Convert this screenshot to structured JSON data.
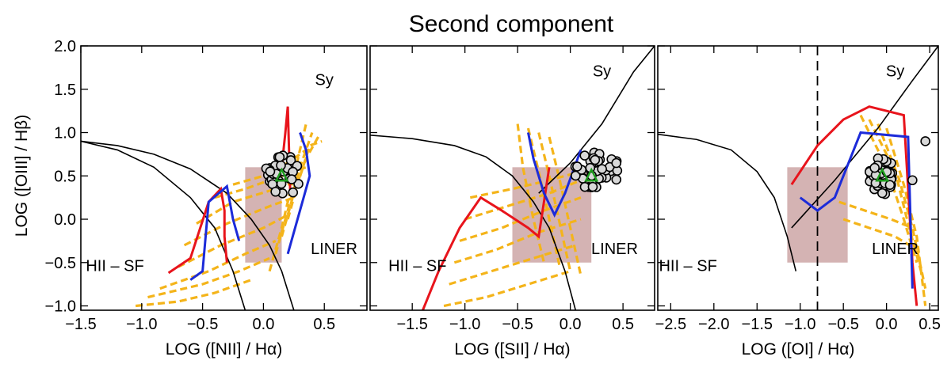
{
  "chart_data": [
    {
      "type": "scatter",
      "title": "Second component",
      "ylabel": "LOG ([OIII] / Hβ)",
      "xlabel": "LOG ([NII] / Hα)",
      "xlim": [
        -1.5,
        0.85
      ],
      "ylim": [
        -1.05,
        2.0
      ],
      "xticks": [
        -1.5,
        -1.0,
        -0.5,
        0.0,
        0.5
      ],
      "yticks": [
        -1.0,
        -0.5,
        0.0,
        0.5,
        1.0,
        1.5,
        2.0
      ],
      "region_labels": [
        {
          "text": "Sy",
          "x": 0.5,
          "y": 1.55
        },
        {
          "text": "HII – SF",
          "x": -1.22,
          "y": -0.6
        },
        {
          "text": "LINER",
          "x": 0.58,
          "y": -0.4
        }
      ],
      "shaded_box": {
        "x": [
          -0.15,
          0.15
        ],
        "y": [
          -0.5,
          0.6
        ],
        "color": "#d4b3b3"
      },
      "curves": [
        {
          "x": [
            -1.5,
            -1.2,
            -0.9,
            -0.6,
            -0.4,
            -0.25,
            -0.15
          ],
          "y": [
            0.9,
            0.8,
            0.6,
            0.25,
            -0.1,
            -0.6,
            -1.05
          ]
        },
        {
          "x": [
            -1.5,
            -1.2,
            -0.9,
            -0.6,
            -0.3,
            -0.1,
            0.05,
            0.15,
            0.25
          ],
          "y": [
            0.9,
            0.85,
            0.75,
            0.58,
            0.3,
            0.0,
            -0.3,
            -0.6,
            -1.05
          ]
        }
      ],
      "series": [
        {
          "color": "#e8141c",
          "x": [
            -0.78,
            -0.6,
            -0.45,
            -0.35,
            -0.32,
            -0.32,
            -0.3
          ],
          "y": [
            -0.62,
            -0.45,
            0.2,
            0.35,
            0.1,
            -0.2,
            -0.5
          ]
        },
        {
          "color": "#1c2bd9",
          "x": [
            -0.6,
            -0.5,
            -0.45,
            -0.3,
            -0.25,
            -0.2
          ],
          "y": [
            -0.7,
            -0.6,
            0.2,
            0.38,
            0.0,
            -0.25
          ]
        },
        {
          "color": "#e8141c",
          "x": [
            0.15,
            0.18,
            0.2,
            0.22
          ],
          "y": [
            0.6,
            1.0,
            1.3,
            0.3
          ]
        },
        {
          "color": "#1c2bd9",
          "x": [
            0.3,
            0.35,
            0.38,
            0.3,
            0.2
          ],
          "y": [
            1.0,
            0.8,
            0.5,
            0.1,
            -0.4
          ]
        }
      ],
      "dashed_series_color": "#f4b41a",
      "dashed_lines": [
        {
          "x": [
            -0.95,
            -0.5,
            -0.2,
            0.05
          ],
          "y": [
            -0.9,
            -0.75,
            -0.6,
            -0.45
          ]
        },
        {
          "x": [
            -0.85,
            -0.45,
            -0.15,
            0.1
          ],
          "y": [
            -0.8,
            -0.6,
            -0.4,
            -0.25
          ]
        },
        {
          "x": [
            -0.7,
            -0.35,
            0.0,
            0.2
          ],
          "y": [
            -0.55,
            -0.3,
            -0.1,
            0.05
          ]
        },
        {
          "x": [
            -0.65,
            -0.3,
            0.05,
            0.25
          ],
          "y": [
            -0.3,
            -0.05,
            0.15,
            0.25
          ]
        },
        {
          "x": [
            -0.55,
            -0.25,
            0.1,
            0.3
          ],
          "y": [
            -0.05,
            0.2,
            0.35,
            0.45
          ]
        },
        {
          "x": [
            -0.4,
            -0.15,
            0.15,
            0.35
          ],
          "y": [
            0.25,
            0.35,
            0.5,
            0.6
          ]
        },
        {
          "x": [
            -0.25,
            0.0,
            0.2,
            0.35
          ],
          "y": [
            0.4,
            0.5,
            0.65,
            0.8
          ]
        },
        {
          "x": [
            -1.05,
            -0.7,
            -0.4,
            -0.1
          ],
          "y": [
            -1.0,
            -0.95,
            -0.85,
            -0.7
          ]
        },
        {
          "x": [
            0.05,
            0.15,
            0.25,
            0.35
          ],
          "y": [
            -0.6,
            -0.1,
            0.5,
            1.1
          ]
        },
        {
          "x": [
            0.1,
            0.2,
            0.3,
            0.4
          ],
          "y": [
            -0.4,
            0.1,
            0.6,
            1.0
          ]
        },
        {
          "x": [
            0.15,
            0.25,
            0.35,
            0.45
          ],
          "y": [
            -0.2,
            0.3,
            0.7,
            0.95
          ]
        },
        {
          "x": [
            0.2,
            0.28,
            0.38,
            0.48
          ],
          "y": [
            0.0,
            0.4,
            0.85,
            0.9
          ]
        }
      ],
      "scatter": {
        "center": [
          0.15,
          0.5
        ],
        "spread": [
          0.3,
          0.5
        ]
      },
      "triangle": {
        "x": 0.15,
        "y": 0.5,
        "color": "#1e9e1e"
      }
    },
    {
      "type": "scatter",
      "xlabel": "LOG ([SII] / Hα)",
      "xlim": [
        -1.9,
        0.8
      ],
      "ylim": [
        -1.05,
        2.0
      ],
      "xticks": [
        -1.5,
        -1.0,
        -0.5,
        0.0,
        0.5
      ],
      "region_labels": [
        {
          "text": "Sy",
          "x": 0.3,
          "y": 1.65
        },
        {
          "text": "HII – SF",
          "x": -1.45,
          "y": -0.6
        },
        {
          "text": "LINER",
          "x": 0.42,
          "y": -0.4
        }
      ],
      "shaded_box": {
        "x": [
          -0.55,
          0.2
        ],
        "y": [
          -0.5,
          0.6
        ],
        "color": "#d4b3b3"
      },
      "curves": [
        {
          "x": [
            -1.9,
            -1.5,
            -1.1,
            -0.8,
            -0.55,
            -0.35,
            -0.2,
            -0.05,
            0.05
          ],
          "y": [
            0.97,
            0.93,
            0.85,
            0.72,
            0.5,
            0.2,
            -0.1,
            -0.6,
            -1.05
          ]
        },
        {
          "x": [
            -0.3,
            0.0,
            0.3,
            0.6,
            0.8
          ],
          "y": [
            0.3,
            0.65,
            1.1,
            1.7,
            2.0
          ]
        }
      ],
      "series": [
        {
          "color": "#e8141c",
          "x": [
            -1.4,
            -1.25,
            -1.05,
            -0.85,
            -0.65,
            -0.4,
            -0.3,
            -0.2
          ],
          "y": [
            -1.05,
            -0.6,
            -0.1,
            0.25,
            0.1,
            -0.1,
            -0.2,
            0.6
          ]
        },
        {
          "color": "#1c2bd9",
          "x": [
            -0.4,
            -0.35,
            -0.25,
            -0.15,
            -0.05,
            0.1
          ],
          "y": [
            1.0,
            0.7,
            0.3,
            0.05,
            0.3,
            0.8
          ]
        }
      ],
      "dashed_series_color": "#f4b41a",
      "dashed_lines": [
        {
          "x": [
            -1.2,
            -0.8,
            -0.4,
            0.0
          ],
          "y": [
            -1.0,
            -0.9,
            -0.75,
            -0.6
          ]
        },
        {
          "x": [
            -1.15,
            -0.75,
            -0.35,
            0.05
          ],
          "y": [
            -0.75,
            -0.6,
            -0.45,
            -0.3
          ]
        },
        {
          "x": [
            -1.1,
            -0.7,
            -0.3,
            0.1
          ],
          "y": [
            -0.5,
            -0.35,
            -0.15,
            0.0
          ]
        },
        {
          "x": [
            -1.05,
            -0.65,
            -0.25,
            0.1
          ],
          "y": [
            -0.25,
            -0.1,
            0.1,
            0.25
          ]
        },
        {
          "x": [
            -1.0,
            -0.6,
            -0.2,
            0.1
          ],
          "y": [
            0.0,
            0.15,
            0.3,
            0.45
          ]
        },
        {
          "x": [
            -0.95,
            -0.55,
            -0.2,
            0.1
          ],
          "y": [
            0.25,
            0.35,
            0.45,
            0.55
          ]
        },
        {
          "x": [
            -0.5,
            -0.45,
            -0.35,
            -0.25
          ],
          "y": [
            1.1,
            0.6,
            0.0,
            -0.5
          ]
        },
        {
          "x": [
            -0.4,
            -0.3,
            -0.2,
            -0.1
          ],
          "y": [
            1.05,
            0.55,
            0.0,
            -0.55
          ]
        },
        {
          "x": [
            -0.3,
            -0.2,
            -0.1,
            0.0
          ],
          "y": [
            1.0,
            0.5,
            -0.05,
            -0.6
          ]
        },
        {
          "x": [
            -0.2,
            -0.1,
            0.0,
            0.1
          ],
          "y": [
            0.95,
            0.45,
            -0.1,
            -0.65
          ]
        }
      ],
      "scatter": {
        "center": [
          0.25,
          0.55
        ],
        "spread": [
          0.45,
          0.45
        ]
      },
      "triangle": {
        "x": 0.2,
        "y": 0.5,
        "color": "#1e9e1e"
      }
    },
    {
      "type": "scatter",
      "xlabel": "LOG ([OI] / Hα)",
      "xlim": [
        -2.65,
        0.6
      ],
      "ylim": [
        -1.05,
        2.0
      ],
      "xticks": [
        -2.5,
        -2.0,
        -1.5,
        -1.0,
        -0.5,
        0.0,
        0.5
      ],
      "region_labels": [
        {
          "text": "Sy",
          "x": 0.1,
          "y": 1.65
        },
        {
          "text": "HII – SF",
          "x": -2.3,
          "y": -0.6
        },
        {
          "text": "LINER",
          "x": 0.1,
          "y": -0.4
        }
      ],
      "shaded_box": {
        "x": [
          -1.15,
          -0.45
        ],
        "y": [
          -0.5,
          0.6
        ],
        "color": "#d4b3b3"
      },
      "vline": {
        "x": -0.8
      },
      "curves": [
        {
          "x": [
            -2.65,
            -2.2,
            -1.8,
            -1.5,
            -1.3,
            -1.15,
            -1.05
          ],
          "y": [
            0.98,
            0.92,
            0.8,
            0.55,
            0.25,
            -0.2,
            -0.6
          ]
        },
        {
          "x": [
            -1.1,
            -0.6,
            -0.1,
            0.3,
            0.6
          ],
          "y": [
            -0.1,
            0.45,
            1.05,
            1.6,
            2.0
          ]
        }
      ],
      "series": [
        {
          "color": "#e8141c",
          "x": [
            -1.1,
            -0.8,
            -0.5,
            -0.2,
            0.2,
            0.3,
            0.35
          ],
          "y": [
            0.4,
            0.85,
            1.15,
            1.3,
            1.2,
            -0.5,
            -1.0
          ]
        },
        {
          "color": "#1c2bd9",
          "x": [
            -1.0,
            -0.8,
            -0.6,
            -0.3,
            0.25,
            0.3
          ],
          "y": [
            0.25,
            0.1,
            0.25,
            1.0,
            0.95,
            -0.8
          ]
        }
      ],
      "dashed_series_color": "#f4b41a",
      "dashed_lines": [
        {
          "x": [
            -0.3,
            0.0,
            0.2,
            0.35
          ],
          "y": [
            1.2,
            0.6,
            0.0,
            -0.5
          ]
        },
        {
          "x": [
            -0.2,
            0.1,
            0.25,
            0.4
          ],
          "y": [
            1.15,
            0.55,
            -0.05,
            -0.6
          ]
        },
        {
          "x": [
            -0.1,
            0.15,
            0.3,
            0.45
          ],
          "y": [
            1.1,
            0.45,
            -0.1,
            -0.8
          ]
        },
        {
          "x": [
            0.0,
            0.2,
            0.35,
            0.45
          ],
          "y": [
            1.05,
            0.4,
            -0.2,
            -1.0
          ]
        },
        {
          "x": [
            -0.5,
            -0.2,
            0.1,
            0.35
          ],
          "y": [
            0.0,
            -0.1,
            -0.2,
            -0.35
          ]
        },
        {
          "x": [
            -0.55,
            -0.25,
            0.05,
            0.3
          ],
          "y": [
            0.2,
            0.1,
            0.0,
            -0.1
          ]
        }
      ],
      "scatter": {
        "center": [
          -0.05,
          0.5
        ],
        "spread": [
          0.3,
          0.45
        ]
      },
      "extra_points": [
        {
          "x": 0.45,
          "y": 0.9
        },
        {
          "x": 0.3,
          "y": 0.45
        }
      ],
      "triangle": {
        "x": -0.05,
        "y": 0.5,
        "color": "#1e9e1e"
      }
    }
  ]
}
